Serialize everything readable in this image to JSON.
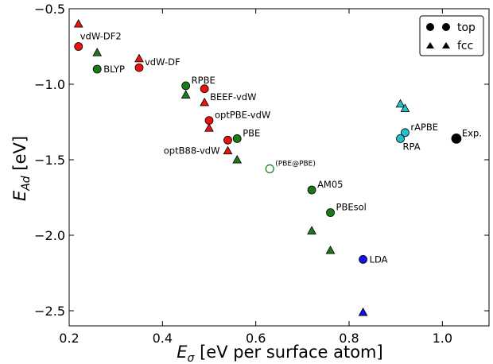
{
  "chart_data": {
    "type": "scatter",
    "xlabel_symbol": "E",
    "xlabel_sub": "σ",
    "xlabel_text": "[eV per surface atom]",
    "ylabel_symbol": "E",
    "ylabel_sub": "Ad",
    "ylabel_text": "[eV]",
    "xlim": [
      0.2,
      1.1
    ],
    "ylim": [
      -2.6,
      -0.5
    ],
    "xticks": [
      {
        "value": 0.2,
        "label": "0.2"
      },
      {
        "value": 0.4,
        "label": "0.4"
      },
      {
        "value": 0.6,
        "label": "0.6"
      },
      {
        "value": 0.8,
        "label": "0.8"
      },
      {
        "value": 1.0,
        "label": "1.0"
      }
    ],
    "yticks": [
      {
        "value": -0.5,
        "label": "−0.5"
      },
      {
        "value": -1.0,
        "label": "−1.0"
      },
      {
        "value": -1.5,
        "label": "−1.5"
      },
      {
        "value": -2.0,
        "label": "−2.0"
      },
      {
        "value": -2.5,
        "label": "−2.5"
      }
    ],
    "legend": {
      "position": "top-right",
      "entries": [
        {
          "label": "top",
          "marker": "circle"
        },
        {
          "label": "fcc",
          "marker": "triangle"
        }
      ]
    },
    "colors": {
      "red": "#ee1111",
      "green": "#1a7a1a",
      "cyan": "#22c0c8",
      "blue": "#1111ee",
      "black": "#000000"
    },
    "points": [
      {
        "x": 0.22,
        "y": -0.6,
        "marker": "triangle",
        "color": "red"
      },
      {
        "x": 0.22,
        "y": -0.75,
        "marker": "circle",
        "color": "red",
        "label": "vdW-DF2",
        "label_pos": "above-right"
      },
      {
        "x": 0.26,
        "y": -0.79,
        "marker": "triangle",
        "color": "green"
      },
      {
        "x": 0.26,
        "y": -0.9,
        "marker": "circle",
        "color": "green",
        "label": "BLYP",
        "label_pos": "right"
      },
      {
        "x": 0.35,
        "y": -0.83,
        "marker": "triangle",
        "color": "red"
      },
      {
        "x": 0.35,
        "y": -0.89,
        "marker": "circle",
        "color": "red",
        "label": "vdW-DF",
        "label_pos": "upper-right"
      },
      {
        "x": 0.45,
        "y": -1.01,
        "marker": "circle",
        "color": "green",
        "label": "RPBE",
        "label_pos": "upper-right"
      },
      {
        "x": 0.45,
        "y": -1.07,
        "marker": "triangle",
        "color": "green"
      },
      {
        "x": 0.49,
        "y": -1.03,
        "marker": "circle",
        "color": "red"
      },
      {
        "x": 0.49,
        "y": -1.12,
        "marker": "triangle",
        "color": "red",
        "label": "BEEF-vdW",
        "label_pos": "upper-right"
      },
      {
        "x": 0.5,
        "y": -1.24,
        "marker": "circle",
        "color": "red",
        "label": "optPBE-vdW",
        "label_pos": "upper-right"
      },
      {
        "x": 0.5,
        "y": -1.29,
        "marker": "triangle",
        "color": "red"
      },
      {
        "x": 0.54,
        "y": -1.37,
        "marker": "circle",
        "color": "red"
      },
      {
        "x": 0.56,
        "y": -1.36,
        "marker": "circle",
        "color": "green",
        "label": "PBE",
        "label_pos": "upper-right"
      },
      {
        "x": 0.54,
        "y": -1.44,
        "marker": "triangle",
        "color": "red",
        "label": "optB88-vdW",
        "label_pos": "left"
      },
      {
        "x": 0.56,
        "y": -1.5,
        "marker": "triangle",
        "color": "green"
      },
      {
        "x": 0.63,
        "y": -1.56,
        "marker": "circle",
        "color": "green",
        "hollow": true,
        "label": "(PBE@PBE)",
        "label_pos": "small-right"
      },
      {
        "x": 0.72,
        "y": -1.7,
        "marker": "circle",
        "color": "green",
        "label": "AM05",
        "label_pos": "upper-right"
      },
      {
        "x": 0.76,
        "y": -1.85,
        "marker": "circle",
        "color": "green",
        "label": "PBEsol",
        "label_pos": "upper-right"
      },
      {
        "x": 0.72,
        "y": -1.97,
        "marker": "triangle",
        "color": "green"
      },
      {
        "x": 0.76,
        "y": -2.1,
        "marker": "triangle",
        "color": "green"
      },
      {
        "x": 0.83,
        "y": -2.16,
        "marker": "circle",
        "color": "blue",
        "label": "LDA",
        "label_pos": "right"
      },
      {
        "x": 0.83,
        "y": -2.51,
        "marker": "triangle",
        "color": "blue"
      },
      {
        "x": 0.91,
        "y": -1.13,
        "marker": "triangle",
        "color": "cyan"
      },
      {
        "x": 0.92,
        "y": -1.16,
        "marker": "triangle",
        "color": "cyan"
      },
      {
        "x": 0.92,
        "y": -1.32,
        "marker": "circle",
        "color": "cyan",
        "label": "rAPBE",
        "label_pos": "upper-right"
      },
      {
        "x": 0.91,
        "y": -1.36,
        "marker": "circle",
        "color": "cyan",
        "label": "RPA",
        "label_pos": "lower-right"
      },
      {
        "x": 1.03,
        "y": -1.36,
        "marker": "circle",
        "color": "black",
        "big": true,
        "label": "Exp.",
        "label_pos": "upper-right"
      }
    ]
  }
}
